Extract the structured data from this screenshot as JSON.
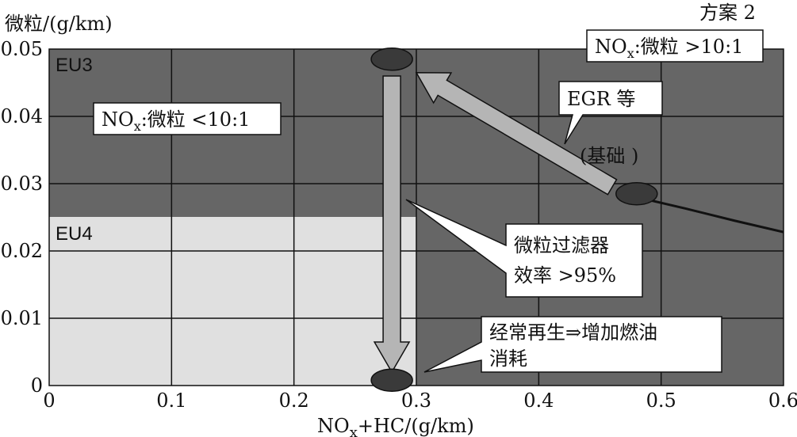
{
  "chart_data": {
    "type": "scatter",
    "scheme_label": "方案 2",
    "ylabel": "微粒/(g/km)",
    "xlabel_parts": [
      "NO",
      "x",
      "+HC/(g/km)"
    ],
    "xlim": [
      0,
      0.6
    ],
    "ylim": [
      0,
      0.05
    ],
    "x_ticks": [
      {
        "value": 0,
        "label": "0"
      },
      {
        "value": 0.1,
        "label": "0.1"
      },
      {
        "value": 0.2,
        "label": "0.2"
      },
      {
        "value": 0.3,
        "label": "0.3"
      },
      {
        "value": 0.4,
        "label": "0.4"
      },
      {
        "value": 0.5,
        "label": "0.5"
      },
      {
        "value": 0.6,
        "label": "0.6"
      }
    ],
    "y_ticks": [
      {
        "value": 0,
        "label": "0"
      },
      {
        "value": 0.01,
        "label": "0.01"
      },
      {
        "value": 0.02,
        "label": "0.02"
      },
      {
        "value": 0.03,
        "label": "0.03"
      },
      {
        "value": 0.04,
        "label": "0.04"
      },
      {
        "value": 0.05,
        "label": "0.05"
      }
    ],
    "regions": [
      {
        "name": "EU3",
        "x_max": 0.6,
        "y_max": 0.05
      },
      {
        "name": "EU4",
        "x_max": 0.3,
        "y_max": 0.025
      }
    ],
    "curve": [
      [
        0.48,
        0.028
      ],
      [
        0.52,
        0.0263
      ],
      [
        0.56,
        0.0245
      ],
      [
        0.6,
        0.0228
      ]
    ],
    "points": [
      {
        "x": 0.28,
        "y": 0.0485
      },
      {
        "x": 0.48,
        "y": 0.0285
      },
      {
        "x": 0.28,
        "y": 0.0008
      }
    ],
    "arrows": [
      {
        "from": [
          0.28,
          0.046
        ],
        "to": [
          0.28,
          0.002
        ]
      },
      {
        "from": [
          0.46,
          0.0295
        ],
        "to": [
          0.3,
          0.0465
        ]
      }
    ],
    "annotations": {
      "ratio_high": {
        "prefix": "NO",
        "sub": "x",
        "suffix": ":微粒 >10:1"
      },
      "ratio_low": {
        "prefix": "NO",
        "sub": "x",
        "suffix": ":微粒 <10:1"
      },
      "egr": "EGR 等",
      "base": "(基础 )",
      "filter_line1": "微粒过滤器",
      "filter_line2": "效率 >95%",
      "regen_line1": "经常再生⇒增加燃油",
      "regen_line2": "消耗"
    }
  }
}
